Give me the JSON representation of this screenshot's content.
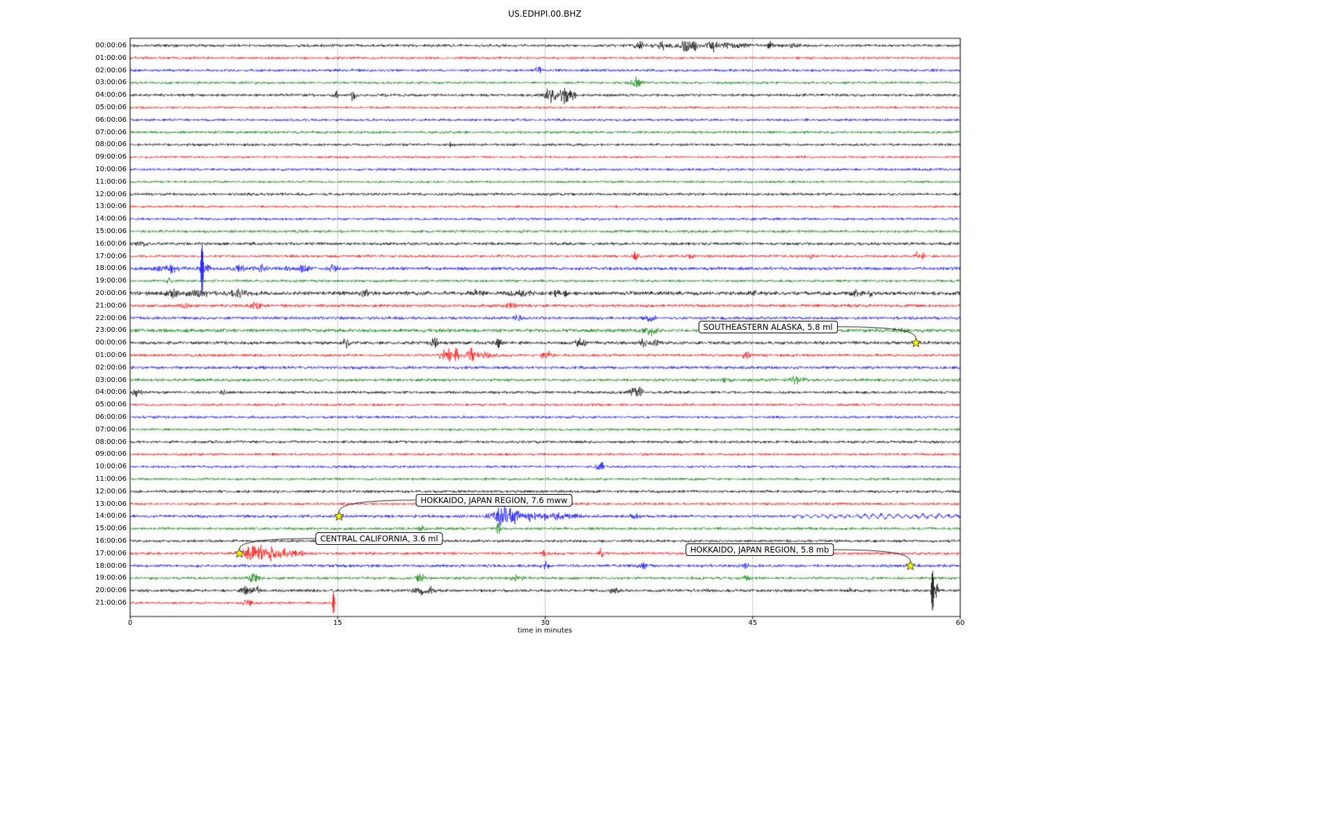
{
  "chart_data": {
    "type": "line",
    "variant": "helicorder-seismogram",
    "title": "US.EDHPI.00.BHZ",
    "xlabel": "time in minutes",
    "xlim": [
      0,
      60
    ],
    "x_ticks": [
      0,
      15,
      30,
      45,
      60
    ],
    "grid": "vertical-gridlines-at-ticks",
    "legend": "none",
    "row_colors_cycle": [
      "#000000",
      "#ff0000",
      "#0000ff",
      "#008000"
    ],
    "grid_color": "#b8b8b8",
    "event_marker": {
      "shape": "star",
      "fill": "#ffff00",
      "edge": "#000000"
    },
    "rows": [
      {
        "label": "00:00:06",
        "amp": 1.3,
        "bursts": [
          {
            "x": 36.8,
            "w": 0.3,
            "a": 3
          },
          {
            "x": 38.5,
            "w": 0.2,
            "a": 3
          },
          {
            "x": 40.2,
            "w": 0.25,
            "a": 7
          },
          {
            "x": 40.8,
            "w": 0.15,
            "a": 4
          },
          {
            "x": 42,
            "w": 0.3,
            "a": 5
          },
          {
            "x": 43.5,
            "w": 1.2,
            "a": 1.5
          },
          {
            "x": 46.3,
            "w": 0.2,
            "a": 3
          },
          {
            "x": 39.5,
            "w": 2.5,
            "a": 1.2
          },
          {
            "x": 47.8,
            "w": 0.5,
            "a": 1.5
          }
        ]
      },
      {
        "label": "01:00:06",
        "amp": 1.15
      },
      {
        "label": "02:00:06",
        "amp": 1.25,
        "bursts": [
          {
            "x": 29.6,
            "w": 0.3,
            "a": 3
          }
        ]
      },
      {
        "label": "03:00:06",
        "amp": 1.2,
        "bursts": [
          {
            "x": 36.6,
            "w": 0.35,
            "a": 4.5
          }
        ]
      },
      {
        "label": "04:00:06",
        "amp": 1.3,
        "bursts": [
          {
            "x": 14.9,
            "w": 0.15,
            "a": 4
          },
          {
            "x": 16.1,
            "w": 0.2,
            "a": 5
          },
          {
            "x": 30.3,
            "w": 0.4,
            "a": 4
          },
          {
            "x": 31.4,
            "w": 0.3,
            "a": 7
          },
          {
            "x": 32,
            "w": 0.2,
            "a": 5
          },
          {
            "x": 30.9,
            "w": 1,
            "a": 2
          }
        ]
      },
      {
        "label": "05:00:06",
        "amp": 1.1
      },
      {
        "label": "06:00:06",
        "amp": 1.2
      },
      {
        "label": "07:00:06",
        "amp": 1.3
      },
      {
        "label": "08:00:06",
        "amp": 1.2,
        "bursts": [
          {
            "x": 23.2,
            "w": 0.1,
            "a": 2.5
          }
        ]
      },
      {
        "label": "09:00:06",
        "amp": 1.1
      },
      {
        "label": "10:00:06",
        "amp": 1.2
      },
      {
        "label": "11:00:06",
        "amp": 1.1
      },
      {
        "label": "12:00:06",
        "amp": 1.3
      },
      {
        "label": "13:00:06",
        "amp": 1.1
      },
      {
        "label": "14:00:06",
        "amp": 1.2
      },
      {
        "label": "15:00:06",
        "amp": 1.3
      },
      {
        "label": "16:00:06",
        "amp": 1.4,
        "bursts": [
          {
            "x": 1,
            "w": 0.5,
            "a": 1.5
          }
        ]
      },
      {
        "label": "17:00:06",
        "amp": 1.2,
        "bursts": [
          {
            "x": 36.6,
            "w": 0.25,
            "a": 6
          },
          {
            "x": 40.6,
            "w": 0.2,
            "a": 3
          },
          {
            "x": 49.2,
            "w": 0.15,
            "a": 3
          },
          {
            "x": 56.9,
            "w": 0.12,
            "a": 4
          },
          {
            "x": 57.3,
            "w": 0.06,
            "a": 3
          }
        ]
      },
      {
        "label": "18:00:06",
        "amp": 1.5,
        "bursts": [
          {
            "x": 3,
            "w": 0.2,
            "a": 3
          },
          {
            "x": 5.2,
            "w": 0.09,
            "a": 22
          },
          {
            "x": 5.45,
            "w": 0.25,
            "a": 6
          },
          {
            "x": 8,
            "w": 0.5,
            "a": 2.5
          },
          {
            "x": 9.5,
            "w": 0.4,
            "a": 2.5
          },
          {
            "x": 11,
            "w": 0.5,
            "a": 2
          },
          {
            "x": 12.5,
            "w": 0.4,
            "a": 2.5
          },
          {
            "x": 14.6,
            "w": 0.5,
            "a": 2.5
          },
          {
            "x": 2.5,
            "w": 1.5,
            "a": 1.2
          }
        ]
      },
      {
        "label": "19:00:06",
        "amp": 1.2,
        "bursts": [
          {
            "x": 2.8,
            "w": 0.2,
            "a": 3
          }
        ]
      },
      {
        "label": "20:00:06",
        "amp": 1.8,
        "bursts": [
          {
            "x": 3,
            "w": 0.5,
            "a": 2.5
          },
          {
            "x": 5,
            "w": 1,
            "a": 2.2
          },
          {
            "x": 8,
            "w": 0.8,
            "a": 2.4
          },
          {
            "x": 17,
            "w": 0.3,
            "a": 2.5
          },
          {
            "x": 25,
            "w": 0.5,
            "a": 2
          },
          {
            "x": 28,
            "w": 1,
            "a": 1.8
          },
          {
            "x": 31,
            "w": 0.6,
            "a": 2.4
          },
          {
            "x": 45,
            "w": 0.3,
            "a": 2
          },
          {
            "x": 52.5,
            "w": 0.3,
            "a": 3
          },
          {
            "x": 53.6,
            "w": 0.2,
            "a": 2.5
          }
        ]
      },
      {
        "label": "21:00:06",
        "amp": 1.4,
        "bursts": [
          {
            "x": 4,
            "w": 0.3,
            "a": 2.5
          },
          {
            "x": 9,
            "w": 0.5,
            "a": 2.3
          },
          {
            "x": 27.6,
            "w": 0.4,
            "a": 3
          }
        ]
      },
      {
        "label": "22:00:06",
        "amp": 1.4,
        "bursts": [
          {
            "x": 28,
            "w": 0.3,
            "a": 2
          },
          {
            "x": 37.6,
            "w": 0.4,
            "a": 3.2
          }
        ]
      },
      {
        "label": "23:00:06",
        "amp": 1.7,
        "bursts": [
          {
            "x": 37.6,
            "w": 0.5,
            "a": 3.5
          },
          {
            "x": 47,
            "w": 0.3,
            "a": 2
          },
          {
            "x": 55.6,
            "w": 0.3,
            "a": 2.5
          }
        ]
      },
      {
        "label": "00:00:06",
        "amp": 1.5,
        "bursts": [
          {
            "x": 15.6,
            "w": 0.3,
            "a": 4
          },
          {
            "x": 22,
            "w": 0.3,
            "a": 3.5
          },
          {
            "x": 26.6,
            "w": 0.3,
            "a": 3.5
          },
          {
            "x": 32.6,
            "w": 0.4,
            "a": 3
          },
          {
            "x": 37,
            "w": 0.3,
            "a": 3.5
          },
          {
            "x": 38,
            "w": 0.2,
            "a": 3
          }
        ]
      },
      {
        "label": "01:00:06",
        "amp": 1.3,
        "bursts": [
          {
            "x": 22.6,
            "w": 0.2,
            "a": 6
          },
          {
            "x": 23.1,
            "w": 0.15,
            "a": 7
          },
          {
            "x": 23.6,
            "w": 0.2,
            "a": 6
          },
          {
            "x": 24.6,
            "w": 0.3,
            "a": 5
          },
          {
            "x": 25.5,
            "w": 1,
            "a": 2
          },
          {
            "x": 30.1,
            "w": 0.4,
            "a": 4
          },
          {
            "x": 44.6,
            "w": 0.3,
            "a": 3.5
          }
        ]
      },
      {
        "label": "02:00:06",
        "amp": 1.4
      },
      {
        "label": "03:00:06",
        "amp": 1.4,
        "bursts": [
          {
            "x": 43,
            "w": 0.3,
            "a": 2
          },
          {
            "x": 48.2,
            "w": 0.5,
            "a": 3
          }
        ]
      },
      {
        "label": "04:00:06",
        "amp": 1.3,
        "bursts": [
          {
            "x": 0.5,
            "w": 0.3,
            "a": 4
          },
          {
            "x": 6.7,
            "w": 0.15,
            "a": 2.5
          },
          {
            "x": 36.2,
            "w": 0.3,
            "a": 5
          },
          {
            "x": 36.8,
            "w": 0.25,
            "a": 6
          }
        ]
      },
      {
        "label": "05:00:06",
        "amp": 1.2
      },
      {
        "label": "06:00:06",
        "amp": 1.2
      },
      {
        "label": "07:00:06",
        "amp": 1.2
      },
      {
        "label": "08:00:06",
        "amp": 1.3
      },
      {
        "label": "09:00:06",
        "amp": 1.2
      },
      {
        "label": "10:00:06",
        "amp": 1.2,
        "bursts": [
          {
            "x": 34,
            "w": 0.3,
            "a": 3.5
          }
        ]
      },
      {
        "label": "11:00:06",
        "amp": 1.2
      },
      {
        "label": "12:00:06",
        "amp": 1.3
      },
      {
        "label": "13:00:06",
        "amp": 1.2
      },
      {
        "label": "14:00:06",
        "amp": 1.4,
        "bursts": [
          {
            "x": 26.8,
            "w": 0.7,
            "a": 9
          },
          {
            "x": 27.6,
            "w": 0.5,
            "a": 6
          },
          {
            "x": 29,
            "w": 1,
            "a": 3
          },
          {
            "x": 31,
            "w": 1.5,
            "a": 1.8
          },
          {
            "x": 36.5,
            "w": 0.3,
            "a": 1.8
          },
          {
            "x": 50,
            "w": 2,
            "a": 2.2,
            "osc": true
          },
          {
            "x": 54,
            "w": 2,
            "a": 2.8,
            "osc": true
          },
          {
            "x": 58,
            "w": 2,
            "a": 2.4,
            "osc": true
          }
        ]
      },
      {
        "label": "15:00:06",
        "amp": 1.3,
        "bursts": [
          {
            "x": 21,
            "w": 0.2,
            "a": 2.5
          },
          {
            "x": 26.6,
            "w": 0.15,
            "a": 5
          }
        ]
      },
      {
        "label": "16:00:06",
        "amp": 1.3
      },
      {
        "label": "17:00:06",
        "amp": 1.3,
        "bursts": [
          {
            "x": 8.5,
            "w": 0.4,
            "a": 6
          },
          {
            "x": 9.3,
            "w": 0.5,
            "a": 7
          },
          {
            "x": 10.2,
            "w": 0.4,
            "a": 5
          },
          {
            "x": 11,
            "w": 0.5,
            "a": 3
          },
          {
            "x": 12,
            "w": 0.6,
            "a": 2.2
          },
          {
            "x": 30,
            "w": 0.3,
            "a": 2
          },
          {
            "x": 34,
            "w": 0.15,
            "a": 5
          }
        ]
      },
      {
        "label": "18:00:06",
        "amp": 1.4,
        "bursts": [
          {
            "x": 30,
            "w": 0.3,
            "a": 3
          },
          {
            "x": 37,
            "w": 0.3,
            "a": 3
          },
          {
            "x": 44.5,
            "w": 0.2,
            "a": 2
          }
        ]
      },
      {
        "label": "19:00:06",
        "amp": 1.3,
        "bursts": [
          {
            "x": 9,
            "w": 0.4,
            "a": 3.5
          },
          {
            "x": 21,
            "w": 0.3,
            "a": 3
          },
          {
            "x": 28,
            "w": 0.4,
            "a": 2.5
          },
          {
            "x": 44.5,
            "w": 0.2,
            "a": 2
          }
        ]
      },
      {
        "label": "20:00:06",
        "amp": 1.4,
        "bursts": [
          {
            "x": 8.5,
            "w": 0.4,
            "a": 3.5
          },
          {
            "x": 9.2,
            "w": 0.2,
            "a": 3
          },
          {
            "x": 21,
            "w": 0.4,
            "a": 3.5
          },
          {
            "x": 21.8,
            "w": 0.2,
            "a": 3
          },
          {
            "x": 35,
            "w": 0.3,
            "a": 2.5
          },
          {
            "x": 52,
            "w": 0.2,
            "a": 2
          },
          {
            "x": 58,
            "w": 0.09,
            "a": 18
          },
          {
            "x": 58.3,
            "w": 0.12,
            "a": 6
          }
        ]
      },
      {
        "label": "21:00:06",
        "amp": 1.2,
        "x_end": 14.9,
        "bursts": [
          {
            "x": 8.5,
            "w": 0.3,
            "a": 2.5
          },
          {
            "x": 14.7,
            "w": 0.07,
            "a": 10
          }
        ]
      }
    ],
    "events": [
      {
        "label": "SOUTHEASTERN ALASKA, 5.8 ml",
        "row": 24,
        "x_min": 56.8,
        "label_pos": {
          "x_min": 46.1,
          "row": 22.7
        }
      },
      {
        "label": "HOKKAIDO, JAPAN REGION, 7.6 mww",
        "row": 38,
        "x_min": 15.1,
        "label_pos": {
          "x_min": 26.3,
          "row": 36.7
        }
      },
      {
        "label": "CENTRAL CALIFORNIA, 3.6 ml",
        "row": 41,
        "x_min": 7.9,
        "label_pos": {
          "x_min": 18.0,
          "row": 39.8
        }
      },
      {
        "label": "HOKKAIDO, JAPAN REGION, 5.8 mb",
        "row": 42,
        "x_min": 56.4,
        "label_pos": {
          "x_min": 45.5,
          "row": 40.7
        }
      }
    ]
  }
}
